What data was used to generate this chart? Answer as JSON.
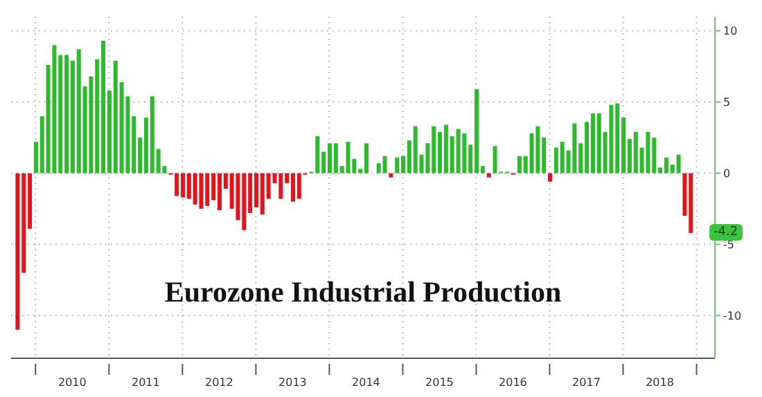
{
  "chart_data": {
    "type": "bar",
    "title": "Eurozone Industrial Production",
    "x": [
      "2009-10",
      "2009-11",
      "2009-12",
      "2010-01",
      "2010-02",
      "2010-03",
      "2010-04",
      "2010-05",
      "2010-06",
      "2010-07",
      "2010-08",
      "2010-09",
      "2010-10",
      "2010-11",
      "2010-12",
      "2011-01",
      "2011-02",
      "2011-03",
      "2011-04",
      "2011-05",
      "2011-06",
      "2011-07",
      "2011-08",
      "2011-09",
      "2011-10",
      "2011-11",
      "2011-12",
      "2012-01",
      "2012-02",
      "2012-03",
      "2012-04",
      "2012-05",
      "2012-06",
      "2012-07",
      "2012-08",
      "2012-09",
      "2012-10",
      "2012-11",
      "2012-12",
      "2013-01",
      "2013-02",
      "2013-03",
      "2013-04",
      "2013-05",
      "2013-06",
      "2013-07",
      "2013-08",
      "2013-09",
      "2013-10",
      "2013-11",
      "2013-12",
      "2014-01",
      "2014-02",
      "2014-03",
      "2014-04",
      "2014-05",
      "2014-06",
      "2014-07",
      "2014-08",
      "2014-09",
      "2014-10",
      "2014-11",
      "2014-12",
      "2015-01",
      "2015-02",
      "2015-03",
      "2015-04",
      "2015-05",
      "2015-06",
      "2015-07",
      "2015-08",
      "2015-09",
      "2015-10",
      "2015-11",
      "2015-12",
      "2016-01",
      "2016-02",
      "2016-03",
      "2016-04",
      "2016-05",
      "2016-06",
      "2016-07",
      "2016-08",
      "2016-09",
      "2016-10",
      "2016-11",
      "2016-12",
      "2017-01",
      "2017-02",
      "2017-03",
      "2017-04",
      "2017-05",
      "2017-06",
      "2017-07",
      "2017-08",
      "2017-09",
      "2017-10",
      "2017-11",
      "2017-12",
      "2018-01",
      "2018-02",
      "2018-03",
      "2018-04",
      "2018-05",
      "2018-06",
      "2018-07",
      "2018-08",
      "2018-09",
      "2018-10",
      "2018-11",
      "2018-12"
    ],
    "values": [
      -11.0,
      -7.0,
      -3.9,
      2.2,
      4.0,
      7.6,
      9.0,
      8.3,
      8.3,
      7.9,
      8.7,
      6.1,
      6.8,
      8.0,
      9.3,
      5.8,
      7.9,
      6.4,
      5.4,
      4.0,
      2.5,
      3.9,
      5.4,
      1.7,
      0.5,
      -0.1,
      -1.6,
      -1.7,
      -1.8,
      -2.2,
      -2.5,
      -2.3,
      -1.9,
      -2.6,
      -1.1,
      -2.5,
      -3.3,
      -4.0,
      -2.8,
      -2.4,
      -2.9,
      -1.8,
      -0.7,
      -1.8,
      -0.7,
      -2.0,
      -1.8,
      -0.1,
      0.1,
      2.6,
      1.5,
      2.1,
      2.1,
      0.5,
      2.2,
      1.0,
      0.3,
      2.1,
      0.0,
      0.7,
      1.2,
      -0.3,
      1.1,
      1.2,
      2.3,
      3.3,
      1.3,
      2.1,
      3.3,
      2.9,
      3.4,
      2.6,
      3.1,
      2.8,
      2.0,
      5.9,
      0.5,
      -0.3,
      1.9,
      0.1,
      0.1,
      -0.1,
      1.2,
      1.2,
      2.8,
      3.3,
      2.5,
      -0.6,
      1.8,
      2.2,
      1.6,
      3.5,
      2.1,
      3.6,
      4.2,
      4.2,
      2.9,
      4.8,
      4.9,
      3.9,
      2.4,
      2.9,
      1.8,
      2.9,
      2.5,
      0.4,
      1.1,
      0.6,
      1.3,
      -3.0,
      -4.2
    ],
    "colors": [
      "#e3141b",
      "#e3141b",
      "#e3141b",
      "#2dba2d",
      "#2dba2d",
      "#2dba2d",
      "#2dba2d",
      "#2dba2d",
      "#2dba2d",
      "#2dba2d",
      "#2dba2d",
      "#2dba2d",
      "#2dba2d",
      "#2dba2d",
      "#2dba2d",
      "#2dba2d",
      "#2dba2d",
      "#2dba2d",
      "#2dba2d",
      "#2dba2d",
      "#2dba2d",
      "#2dba2d",
      "#2dba2d",
      "#2dba2d",
      "#2dba2d",
      "#e3141b",
      "#e3141b",
      "#e3141b",
      "#e3141b",
      "#e3141b",
      "#e3141b",
      "#e3141b",
      "#e3141b",
      "#e3141b",
      "#e3141b",
      "#e3141b",
      "#e3141b",
      "#e3141b",
      "#e3141b",
      "#e3141b",
      "#e3141b",
      "#e3141b",
      "#e3141b",
      "#e3141b",
      "#e3141b",
      "#e3141b",
      "#e3141b",
      "#e3141b",
      "#2dba2d",
      "#2dba2d",
      "#2dba2d",
      "#2dba2d",
      "#2dba2d",
      "#2dba2d",
      "#2dba2d",
      "#2dba2d",
      "#2dba2d",
      "#2dba2d",
      "#2dba2d",
      "#2dba2d",
      "#2dba2d",
      "#e3141b",
      "#2dba2d",
      "#2dba2d",
      "#2dba2d",
      "#2dba2d",
      "#2dba2d",
      "#2dba2d",
      "#2dba2d",
      "#2dba2d",
      "#2dba2d",
      "#2dba2d",
      "#2dba2d",
      "#2dba2d",
      "#2dba2d",
      "#2dba2d",
      "#2dba2d",
      "#e3141b",
      "#2dba2d",
      "#2dba2d",
      "#2dba2d",
      "#e3141b",
      "#2dba2d",
      "#2dba2d",
      "#2dba2d",
      "#2dba2d",
      "#2dba2d",
      "#e3141b",
      "#2dba2d",
      "#2dba2d",
      "#2dba2d",
      "#2dba2d",
      "#2dba2d",
      "#2dba2d",
      "#2dba2d",
      "#2dba2d",
      "#2dba2d",
      "#2dba2d",
      "#2dba2d",
      "#2dba2d",
      "#2dba2d",
      "#2dba2d",
      "#2dba2d",
      "#2dba2d",
      "#2dba2d",
      "#2dba2d",
      "#2dba2d",
      "#2dba2d",
      "#2dba2d",
      "#e3141b",
      "#e3141b"
    ],
    "xlim": [
      "2009-09",
      "2019-04"
    ],
    "xticks": [
      {
        "value": "2010",
        "label": null
      },
      {
        "value": "2010-07",
        "label": "2010"
      },
      {
        "value": "2011",
        "label": null
      },
      {
        "value": "2011-07",
        "label": "2011"
      },
      {
        "value": "2012",
        "label": null
      },
      {
        "value": "2012-07",
        "label": "2012"
      },
      {
        "value": "2013",
        "label": null
      },
      {
        "value": "2013-07",
        "label": "2013"
      },
      {
        "value": "2014",
        "label": null
      },
      {
        "value": "2014-07",
        "label": "2014"
      },
      {
        "value": "2015",
        "label": null
      },
      {
        "value": "2015-07",
        "label": "2015"
      },
      {
        "value": "2016",
        "label": null
      },
      {
        "value": "2016-07",
        "label": "2016"
      },
      {
        "value": "2017",
        "label": null
      },
      {
        "value": "2017-07",
        "label": "2017"
      },
      {
        "value": "2018",
        "label": null
      },
      {
        "value": "2018-07",
        "label": "2018"
      },
      {
        "value": "2019",
        "label": null
      }
    ],
    "ylim": [
      -13,
      11
    ],
    "yticks": [
      -10,
      -5,
      0,
      5,
      10
    ],
    "grid": true,
    "annotations": [
      {
        "text": "-4.2",
        "x": "2018-12",
        "y": -4.2
      }
    ]
  }
}
